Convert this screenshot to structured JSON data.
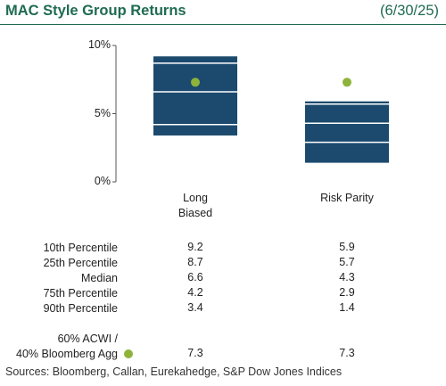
{
  "chart_data": {
    "type": "box",
    "title": "MAC Style Group Returns",
    "subtitle": "(6/30/25)",
    "categories": [
      "Long Biased",
      "Risk Parity"
    ],
    "series": [
      {
        "name": "10th Percentile",
        "values": [
          9.2,
          5.9
        ]
      },
      {
        "name": "25th Percentile",
        "values": [
          8.7,
          5.7
        ]
      },
      {
        "name": "Median",
        "values": [
          6.6,
          4.3
        ]
      },
      {
        "name": "75th Percentile",
        "values": [
          4.2,
          2.9
        ]
      },
      {
        "name": "90th Percentile",
        "values": [
          3.4,
          1.4
        ]
      },
      {
        "name": "60% ACWI /\n40% Bloomberg Agg",
        "values": [
          7.3,
          7.3
        ],
        "color": "#8db33a"
      }
    ],
    "color": "#1c4a6e",
    "ylim": [
      0,
      10
    ],
    "yticks": [
      {
        "value": 0,
        "label": "0%"
      },
      {
        "value": 5,
        "label": "5%"
      },
      {
        "value": 10,
        "label": "10%"
      }
    ],
    "source": "Sources: Bloomberg, Callan, Eurekahedge, S&P Dow Jones Indices"
  }
}
